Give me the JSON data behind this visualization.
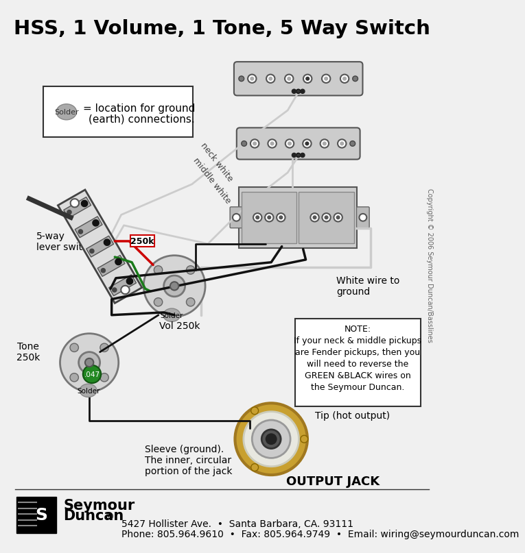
{
  "title": "HSS, 1 Volume, 1 Tone, 5 Way Switch",
  "title_fontsize": 21,
  "title_fontweight": "bold",
  "bg_color": "#f0f0f0",
  "footer_line1": "5427 Hollister Ave.  •  Santa Barbara, CA. 93111",
  "footer_line2": "Phone: 805.964.9610  •  Fax: 805.964.9749  •  Email: wiring@seymourduncan.com",
  "legend_text": "= location for ground\n(earth) connections.",
  "solder_color": "#aaaaaa",
  "pickup_light": "#cccccc",
  "pickup_dark": "#999999",
  "switch_light": "#dddddd",
  "switch_dark": "#888888",
  "wire_black": "#111111",
  "wire_white": "#cccccc",
  "wire_green": "#1a7a1a",
  "wire_red": "#cc0000",
  "jack_gold": "#c8a030",
  "jack_inner": "#e8e8e0",
  "note_text": "NOTE:\nIf your neck & middle pickups\nare Fender pickups, then you\nwill need to reverse the\nGREEN &BLACK wires on\nthe Seymour Duncan.",
  "copyright": "Copyright © 2006 Seymour Duncan/Basslines"
}
